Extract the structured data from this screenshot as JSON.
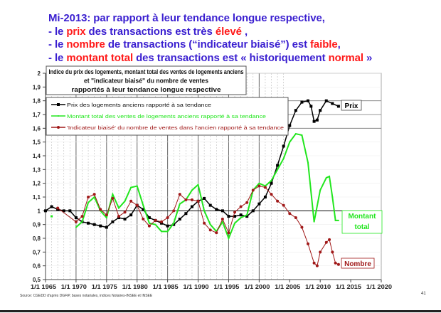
{
  "slide": {
    "headline": {
      "line1": "Mi-2013: par rapport à leur tendance longue respective,",
      "line2": [
        {
          "t": "- le "
        },
        {
          "t": "prix",
          "red": true
        },
        {
          "t": " des transactions est très "
        },
        {
          "t": "élevé",
          "red": true
        },
        {
          "t": " ,"
        }
      ],
      "line3": [
        {
          "t": "- le "
        },
        {
          "t": "nombre",
          "red": true
        },
        {
          "t": " de transactions (“indicateur biaisé”) est "
        },
        {
          "t": "faible",
          "red": true
        },
        {
          "t": ","
        }
      ],
      "line4": [
        {
          "t": "- le "
        },
        {
          "t": "montant total",
          "red": true
        },
        {
          "t": " des transactions est « historiquement "
        },
        {
          "t": "normal",
          "red": true
        },
        {
          "t": " »"
        }
      ]
    },
    "source": "Source: CGEDD d'après DGFiP, bases notariales, indices Notaires-INSEE et INSEE",
    "page_number": "41"
  },
  "chart_data": {
    "type": "line",
    "title": [
      "Indice du prix des logements, montant total des ventes de logements anciens",
      "et \"indicateur biaisé\" du nombre de ventes",
      "rapportés à leur tendance longue respective"
    ],
    "xlim": [
      1965,
      2020
    ],
    "ylim": [
      0.5,
      2.0
    ],
    "x_ticks": [
      1965,
      1970,
      1975,
      1980,
      1985,
      1990,
      1995,
      2000,
      2005,
      2010,
      2015,
      2020
    ],
    "x_tick_labels": [
      "1/1 1965",
      "1/1 1970",
      "1/1 1975",
      "1/1 1980",
      "1/1 1985",
      "1/1 1990",
      "1/1 1995",
      "1/1 2000",
      "1/1 2005",
      "1/1 2010",
      "1/1 2015",
      "1/1 2020"
    ],
    "y_ticks": [
      0.5,
      0.6,
      0.7,
      0.8,
      0.9,
      1,
      1.1,
      1.2,
      1.3,
      1.4,
      1.5,
      1.6,
      1.7,
      1.8,
      1.9,
      2
    ],
    "y_tick_labels": [
      "0,5",
      "0,6",
      "0,7",
      "0,8",
      "0,9",
      "1",
      "1,1",
      "1,2",
      "1,3",
      "1,4",
      "1,5",
      "1,6",
      "1,7",
      "1,8",
      "1,9",
      "2"
    ],
    "reference_line": 1,
    "legend_position": "top-left",
    "series": [
      {
        "name": "Prix des logements anciens rapporté à sa tendance",
        "end_label": "Prix",
        "color": "#000000",
        "x": [
          1965,
          1966,
          1967,
          1968,
          1969,
          1970,
          1971,
          1972,
          1973,
          1974,
          1975,
          1976,
          1977,
          1978,
          1979,
          1980,
          1981,
          1982,
          1983,
          1984,
          1985,
          1986,
          1987,
          1988,
          1989,
          1990,
          1991,
          1992,
          1993,
          1994,
          1995,
          1996,
          1997,
          1998,
          1999,
          2000,
          2001,
          2002,
          2003,
          2004,
          2005,
          2006,
          2007,
          2008,
          2008.5,
          2009,
          2009.5,
          2010,
          2011,
          2012,
          2013
        ],
        "y": [
          1.0,
          1.03,
          1.01,
          1.0,
          1.0,
          0.95,
          0.92,
          0.91,
          0.9,
          0.89,
          0.88,
          0.92,
          0.95,
          0.94,
          0.97,
          1.04,
          1.01,
          0.95,
          0.93,
          0.91,
          0.89,
          0.9,
          0.94,
          0.98,
          1.03,
          1.07,
          1.09,
          1.04,
          1.01,
          1.0,
          0.96,
          0.96,
          0.97,
          0.96,
          1.0,
          1.05,
          1.1,
          1.2,
          1.33,
          1.47,
          1.62,
          1.73,
          1.79,
          1.8,
          1.76,
          1.65,
          1.66,
          1.73,
          1.8,
          1.78,
          1.76
        ]
      },
      {
        "name": "Montant total des ventes de logements anciens rapporté à sa tendance",
        "end_label": "Montant total",
        "color": "#22e61e",
        "x": [
          1970,
          1971,
          1972,
          1973,
          1974,
          1975,
          1976,
          1977,
          1978,
          1979,
          1980,
          1981,
          1982,
          1983,
          1984,
          1985,
          1986,
          1987,
          1988,
          1989,
          1990,
          1991,
          1992,
          1993,
          1994,
          1995,
          1996,
          1997,
          1998,
          1999,
          2000,
          2001,
          2002,
          2003,
          2004,
          2005,
          2006,
          2007,
          2008,
          2009,
          2010,
          2011,
          2011.5,
          2012,
          2012.5,
          2013
        ],
        "y": [
          0.88,
          0.92,
          1.06,
          1.1,
          1.0,
          0.95,
          1.12,
          1.02,
          1.07,
          1.17,
          1.18,
          1.04,
          0.91,
          0.9,
          0.85,
          0.85,
          0.91,
          1.05,
          1.08,
          1.15,
          1.19,
          1.0,
          0.9,
          0.85,
          0.92,
          0.8,
          0.91,
          0.95,
          0.97,
          1.15,
          1.2,
          1.18,
          1.22,
          1.3,
          1.38,
          1.5,
          1.56,
          1.55,
          1.35,
          0.92,
          1.15,
          1.24,
          1.25,
          1.1,
          0.93,
          0.93
        ]
      },
      {
        "name": "'Indicateur biaisé' du nombre de ventes dans l'ancien rapporté à sa tendance",
        "end_label": "Nombre",
        "color": "#a01818",
        "x": [
          1967,
          1970,
          1971,
          1972,
          1973,
          1974,
          1975,
          1976,
          1977,
          1978,
          1979,
          1980,
          1981,
          1982,
          1983,
          1984,
          1985,
          1986,
          1987,
          1988,
          1989,
          1990,
          1991,
          1992,
          1993,
          1994,
          1995,
          1996,
          1997,
          1998,
          1999,
          2000,
          2001,
          2002,
          2003,
          2004,
          2005,
          2006,
          2007,
          2008,
          2009,
          2009.5,
          2010,
          2011,
          2011.5,
          2012,
          2012.5,
          2013
        ],
        "y": [
          1.02,
          0.92,
          0.96,
          1.1,
          1.12,
          1.01,
          0.97,
          1.09,
          0.96,
          0.99,
          1.07,
          1.04,
          0.94,
          0.89,
          0.93,
          0.92,
          0.95,
          1.0,
          1.12,
          1.08,
          1.08,
          1.07,
          0.91,
          0.86,
          0.84,
          0.94,
          0.84,
          0.99,
          1.03,
          1.06,
          1.15,
          1.18,
          1.17,
          1.12,
          1.07,
          1.04,
          0.98,
          0.95,
          0.88,
          0.76,
          0.62,
          0.6,
          0.7,
          0.77,
          0.79,
          0.7,
          0.62,
          0.61
        ]
      }
    ]
  }
}
